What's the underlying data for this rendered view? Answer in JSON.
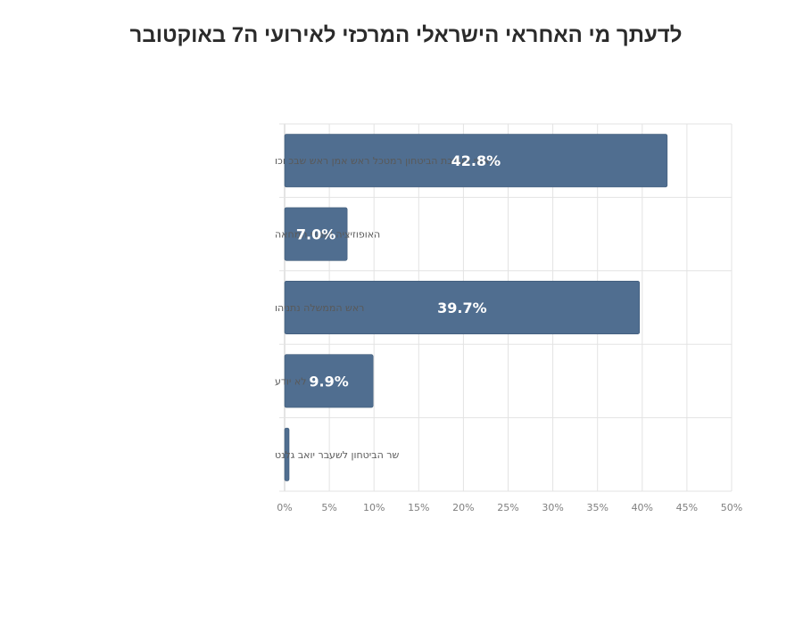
{
  "chart_data": {
    "type": "bar",
    "orientation": "horizontal",
    "title": "לדעתך מי האחראי הישראלי המרכזי לאירועי ה7 באוקטובר",
    "categories": [
      "ראשי מערכת הביטחון רמטכל ראש אמן ראש שבכ וכו",
      "האופוזיציה ואנשי המחאה",
      "ראש הממשלה נתניהו",
      "לא יודע",
      "שר הביטחון לשעבר יואב גלנט"
    ],
    "values": [
      42.8,
      7.0,
      39.7,
      9.9,
      0.5
    ],
    "data_labels": [
      "42.8%",
      "7.0%",
      "39.7%",
      "9.9%",
      ""
    ],
    "xlim": [
      0,
      50
    ],
    "x_ticks": [
      0,
      5,
      10,
      15,
      20,
      25,
      30,
      35,
      40,
      45,
      50
    ],
    "x_tick_labels": [
      "0%",
      "5%",
      "10%",
      "15%",
      "20%",
      "25%",
      "30%",
      "35%",
      "40%",
      "45%",
      "50%"
    ],
    "grid": true,
    "legend": "none",
    "bar_color": "#506e90"
  }
}
